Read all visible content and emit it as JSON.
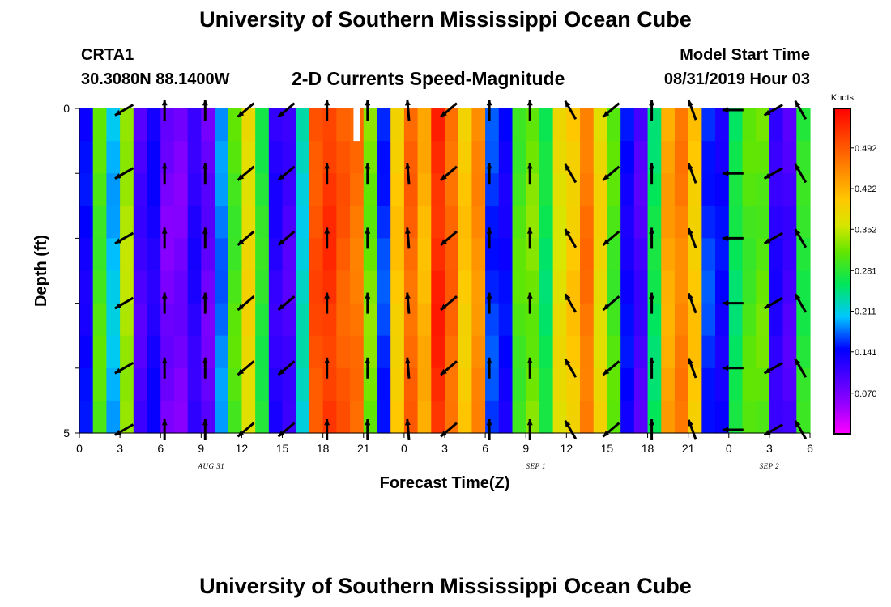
{
  "header": {
    "title_top": "University of Southern Mississippi Ocean Cube",
    "station": "CRTA1",
    "coords": "30.3080N 88.1400W",
    "subtitle": "2-D Currents Speed-Magnitude",
    "model_label": "Model Start Time",
    "model_time": "08/31/2019 Hour 03",
    "title_bottom": "University of Southern Mississippi Ocean Cube"
  },
  "chart_data": {
    "type": "heatmap",
    "title": "2-D Currents Speed-Magnitude",
    "xlabel": "Forecast Time(Z)",
    "ylabel": "Depth (ft)",
    "x_ticks": [
      "0",
      "3",
      "6",
      "9",
      "12",
      "15",
      "18",
      "21",
      "0",
      "3",
      "6",
      "9",
      "12",
      "15",
      "18",
      "21",
      "0",
      "3",
      "6"
    ],
    "date_labels": [
      {
        "label": "AUG 31",
        "tick_index": 3.25
      },
      {
        "label": "SEP 1",
        "tick_index": 11.25
      },
      {
        "label": "SEP 2",
        "tick_index": 17
      }
    ],
    "y_ticks": [
      "0",
      "5"
    ],
    "ylim": [
      0,
      5
    ],
    "colorbar": {
      "unit": "Knots",
      "min": 0.0,
      "max": 0.56,
      "tick_labels": [
        "0.070",
        "0.141",
        "0.211",
        "0.281",
        "0.352",
        "0.422",
        "0.492"
      ],
      "tick_values": [
        0.07,
        0.141,
        0.211,
        0.281,
        0.352,
        0.422,
        0.492
      ]
    },
    "hours": 54,
    "speed_by_hour": [
      0.14,
      0.3,
      0.2,
      0.34,
      0.1,
      0.13,
      0.07,
      0.07,
      0.12,
      0.08,
      0.18,
      0.3,
      0.38,
      0.28,
      0.12,
      0.1,
      0.22,
      0.5,
      0.52,
      0.49,
      0.47,
      0.32,
      0.16,
      0.4,
      0.48,
      0.42,
      0.53,
      0.48,
      0.4,
      0.45,
      0.16,
      0.14,
      0.3,
      0.32,
      0.26,
      0.37,
      0.4,
      0.47,
      0.38,
      0.3,
      0.14,
      0.1,
      0.26,
      0.43,
      0.46,
      0.4,
      0.16,
      0.14,
      0.26,
      0.3,
      0.31,
      0.12,
      0.1,
      0.28
    ],
    "arrow_times_hours": [
      3.3,
      6.3,
      9.3,
      12.3,
      15.3,
      18.3,
      21.3,
      24.3,
      27.3,
      30.3,
      33.3,
      36.3,
      39.3,
      42.3,
      45.3,
      48.3,
      51.3,
      53.3
    ],
    "arrow_depths_ft": [
      0,
      1,
      2,
      3,
      4,
      5
    ],
    "arrow_direction_deg": [
      150,
      270,
      270,
      140,
      140,
      270,
      270,
      265,
      140,
      270,
      270,
      240,
      140,
      270,
      250,
      180,
      150,
      240
    ],
    "missing_cell": {
      "hour": 20.5,
      "depth_from_ft": 0,
      "depth_to_ft": 0.5
    }
  }
}
